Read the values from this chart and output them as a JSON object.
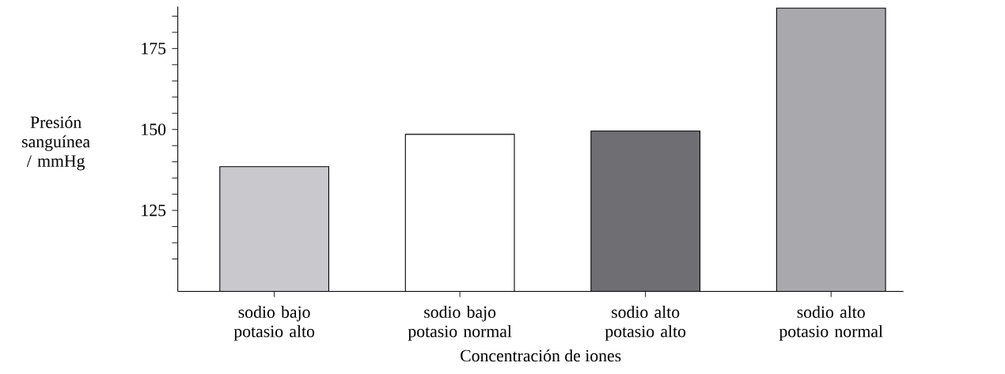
{
  "chart_data": {
    "type": "bar",
    "xlabel": "Concentración de iones",
    "ylabel": "Presión sanguínea / mmHg",
    "categories": [
      "sodio bajo potasio alto",
      "sodio bajo potasio normal",
      "sodio alto potasio alto",
      "sodio alto potasio normal"
    ],
    "values": [
      138.5,
      148.5,
      149.5,
      187.5
    ],
    "colors": [
      "#c9c9cd",
      "#ffffff",
      "#6f6f73",
      "#a9a9ad"
    ],
    "ylim": [
      100,
      188
    ],
    "yticks": [
      {
        "value": 110,
        "label": null
      },
      {
        "value": 115,
        "label": null
      },
      {
        "value": 120,
        "label": null
      },
      125,
      {
        "value": 130,
        "label": null
      },
      {
        "value": 135,
        "label": null
      },
      {
        "value": 140,
        "label": null
      },
      {
        "value": 145,
        "label": null
      },
      150,
      {
        "value": 155,
        "label": null
      },
      {
        "value": 160,
        "label": null
      },
      {
        "value": 165,
        "label": null
      },
      {
        "value": 170,
        "label": null
      },
      175,
      {
        "value": 180,
        "label": null
      },
      {
        "value": 185,
        "label": null
      }
    ]
  }
}
